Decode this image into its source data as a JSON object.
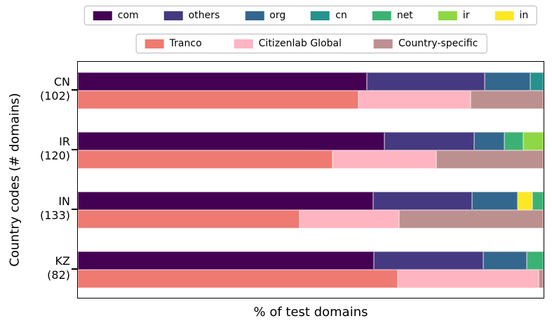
{
  "legend_tlds": [
    {
      "label": "com",
      "color": "#440154"
    },
    {
      "label": "others",
      "color": "#453a82"
    },
    {
      "label": "org",
      "color": "#33678d"
    },
    {
      "label": "cn",
      "color": "#26928d"
    },
    {
      "label": "net",
      "color": "#3bb273"
    },
    {
      "label": "ir",
      "color": "#8fd744"
    },
    {
      "label": "in",
      "color": "#fde724"
    }
  ],
  "legend_sources": [
    {
      "label": "Tranco",
      "color": "#ee7a72"
    },
    {
      "label": "Citizenlab Global",
      "color": "#ffb4c1"
    },
    {
      "label": "Country-specific",
      "color": "#bd9090"
    }
  ],
  "chart_data": {
    "type": "bar",
    "orientation": "horizontal",
    "stacked": true,
    "title": "",
    "xlabel": "% of test domains",
    "ylabel": "Country codes (# domains)",
    "xlim": [
      0,
      100
    ],
    "grid": false,
    "legend_position": "above",
    "categories": [
      "CN (102)",
      "IR (120)",
      "IN (133)",
      "KZ (82)"
    ],
    "colors": {
      "com": "#440154",
      "others": "#453a82",
      "org": "#33678d",
      "cn": "#26928d",
      "net": "#3bb273",
      "ir": "#8fd744",
      "in": "#fde724",
      "Tranco": "#ee7a72",
      "Citizenlab Global": "#ffb4c1",
      "Country-specific": "#bd9090"
    },
    "groups": [
      {
        "code": "CN",
        "domains": 102,
        "tld_segments": [
          {
            "name": "com",
            "pct": 62.0
          },
          {
            "name": "others",
            "pct": 25.3
          },
          {
            "name": "org",
            "pct": 9.9
          },
          {
            "name": "cn",
            "pct": 2.8
          }
        ],
        "source_segments": [
          {
            "name": "Tranco",
            "pct": 60.2
          },
          {
            "name": "Citizenlab Global",
            "pct": 24.2
          },
          {
            "name": "Country-specific",
            "pct": 15.6
          }
        ]
      },
      {
        "code": "IR",
        "domains": 120,
        "tld_segments": [
          {
            "name": "com",
            "pct": 65.8
          },
          {
            "name": "others",
            "pct": 19.3
          },
          {
            "name": "org",
            "pct": 6.4
          },
          {
            "name": "net",
            "pct": 4.2
          },
          {
            "name": "ir",
            "pct": 4.3
          }
        ],
        "source_segments": [
          {
            "name": "Tranco",
            "pct": 54.6
          },
          {
            "name": "Citizenlab Global",
            "pct": 22.4
          },
          {
            "name": "Country-specific",
            "pct": 23.0
          }
        ]
      },
      {
        "code": "IN",
        "domains": 133,
        "tld_segments": [
          {
            "name": "com",
            "pct": 63.4
          },
          {
            "name": "others",
            "pct": 21.2
          },
          {
            "name": "org",
            "pct": 9.8
          },
          {
            "name": "in",
            "pct": 3.2
          },
          {
            "name": "net",
            "pct": 2.4
          }
        ],
        "source_segments": [
          {
            "name": "Tranco",
            "pct": 47.6
          },
          {
            "name": "Citizenlab Global",
            "pct": 21.4
          },
          {
            "name": "Country-specific",
            "pct": 31.0
          }
        ]
      },
      {
        "code": "KZ",
        "domains": 82,
        "tld_segments": [
          {
            "name": "com",
            "pct": 63.6
          },
          {
            "name": "others",
            "pct": 23.4
          },
          {
            "name": "org",
            "pct": 9.4
          },
          {
            "name": "net",
            "pct": 3.6
          }
        ],
        "source_segments": [
          {
            "name": "Tranco",
            "pct": 68.6
          },
          {
            "name": "Citizenlab Global",
            "pct": 30.4
          },
          {
            "name": "Country-specific",
            "pct": 1.0
          }
        ]
      }
    ]
  }
}
